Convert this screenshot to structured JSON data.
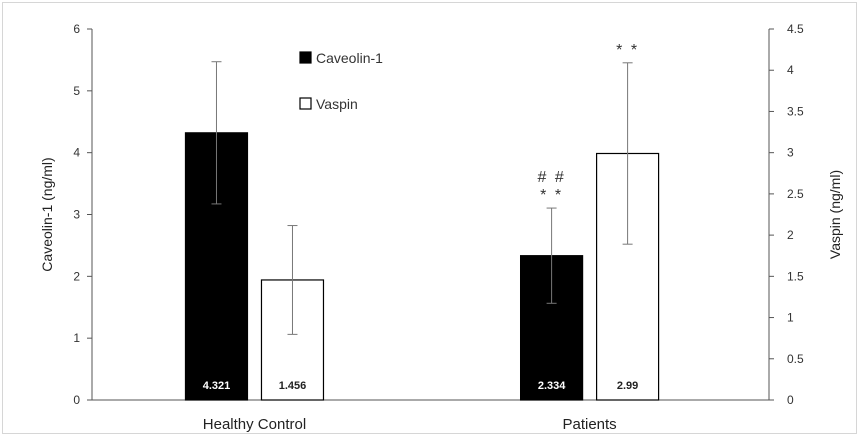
{
  "chart_data": {
    "type": "bar",
    "categories": [
      "Healthy Control",
      "Patients"
    ],
    "series": [
      {
        "name": "Caveolin-1",
        "axis": "left",
        "values": [
          4.321,
          2.334
        ],
        "errors": [
          1.15,
          0.77
        ],
        "labels": [
          "4.321",
          "2.334"
        ],
        "fill": "#000000"
      },
      {
        "name": "Vaspin",
        "axis": "right",
        "values": [
          1.456,
          2.99
        ],
        "errors": [
          0.66,
          1.1
        ],
        "labels": [
          "1.456",
          "2.99"
        ],
        "fill": "#ffffff"
      }
    ],
    "ylabel": "Caveolin-1  (ng/ml)",
    "y2label": "Vaspin (ng/ml)",
    "ylim": [
      0,
      6
    ],
    "y2lim": [
      0,
      4.5
    ],
    "yticks": [
      "0",
      "1",
      "2",
      "3",
      "4",
      "5",
      "6"
    ],
    "y2ticks": [
      "0",
      "0.5",
      "1",
      "1.5",
      "2",
      "2.5",
      "3",
      "3.5",
      "4",
      "4.5"
    ],
    "grid": false,
    "legend": {
      "placement": "top-center",
      "entries": [
        "Caveolin-1",
        "Vaspin"
      ]
    },
    "annotations": [
      {
        "category": "Patients",
        "series": "Vaspin",
        "text": "* *"
      },
      {
        "category": "Patients",
        "series": "Caveolin-1",
        "text": "# #"
      },
      {
        "category": "Patients",
        "series": "Caveolin-1",
        "text": "* *"
      }
    ]
  }
}
